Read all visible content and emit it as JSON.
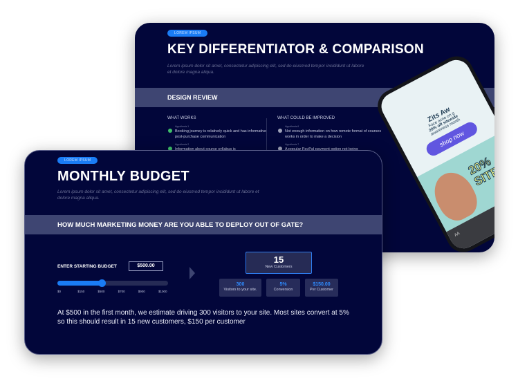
{
  "back_slide": {
    "badge": "LOREM IPSUM",
    "title": "KEY DIFFERENTIATOR & COMPARISON",
    "description": "Lorem ipsum dolor sit amet, consectetur adipiscing elit, sed do eiusmod tempor incididunt ut labore et dolore magna aliqua.",
    "section_title": "DESIGN REVIEW",
    "what_works": {
      "heading": "WHAT WORKS",
      "items": [
        {
          "hypothesis": "Hypothesis 1",
          "text": "Booking journey is relatively quick and has informative post-purchase communication"
        },
        {
          "hypothesis": "Hypothesis 2",
          "text": "Information about course syllabus is"
        }
      ]
    },
    "could_improve": {
      "heading": "WHAT COULD BE IMPROVED",
      "items": [
        {
          "hypothesis": "Hypothesis 6",
          "text": "Not enough information on how remote format of courses works in order to make a decision"
        },
        {
          "hypothesis": "Hypothesis 7",
          "text": "A popular PayPal payment option not being"
        }
      ]
    },
    "phone_ad": {
      "headline": "Zits Aw",
      "sub": "Face acne on g",
      "offer": "20% off sitewide",
      "month": "awareness month",
      "cta": "shop now",
      "banner": "20% SITE",
      "browser_aa": "AA"
    }
  },
  "front_slide": {
    "badge": "LOREM IPSUM",
    "title": "MONTHLY BUDGET",
    "description": "Lorem ipsum dolor sit amet, consectetur adipiscing elit, sed do eiusmod tempor incididunt ut labore et dolore magna aliqua.",
    "question": "HOW MUCH MARKETING MONEY ARE YOU ABLE TO DEPLOY OUT OF GATE?",
    "budget_label": "ENTER STARTING BUDGET",
    "budget_value": "$500.00",
    "slider": {
      "value": 500,
      "min": 0,
      "max": 1000,
      "ticks": [
        "$0",
        "$150",
        "$500",
        "$700",
        "$900",
        "$1000"
      ]
    },
    "result": {
      "value": "15",
      "label": "New Customers"
    },
    "metrics": [
      {
        "value": "300",
        "label": "Visitors to your site."
      },
      {
        "value": "5%",
        "label": "Conversion"
      },
      {
        "value": "$150.00",
        "label": "Per Customer"
      }
    ],
    "summary": "At $500 in the first month, we estimate driving 300 visitors to your site. Most sites convert at 5% so this should result in 15 new customers, $150 per customer"
  },
  "colors": {
    "background": "#02063a",
    "band": "#3e4572",
    "accent": "#1a7cf5",
    "check": "#3fbf6a"
  }
}
